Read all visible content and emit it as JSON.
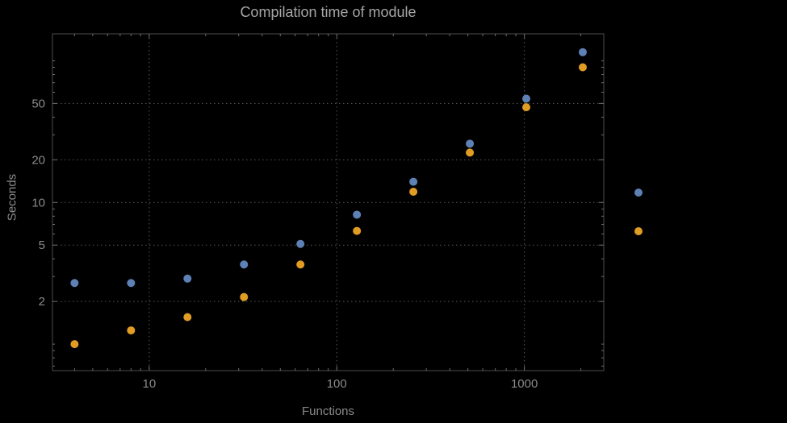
{
  "chart_data": {
    "type": "scatter",
    "title": "Compilation time of module",
    "xlabel": "Functions",
    "ylabel": "Seconds",
    "x_scale": "log",
    "y_scale": "log",
    "xlim": [
      3.05,
      2650
    ],
    "ylim": [
      0.65,
      155
    ],
    "grid": true,
    "x_ticks": [
      {
        "value": 10,
        "label": "10"
      },
      {
        "value": 100,
        "label": "100"
      },
      {
        "value": 1000,
        "label": "1000"
      }
    ],
    "y_ticks": [
      {
        "value": 2,
        "label": "2"
      },
      {
        "value": 5,
        "label": "5"
      },
      {
        "value": 10,
        "label": "10"
      },
      {
        "value": 20,
        "label": "20"
      },
      {
        "value": 50,
        "label": "50"
      }
    ],
    "x": [
      4,
      8,
      16,
      32,
      64,
      128,
      256,
      512,
      1024,
      2048
    ],
    "series": [
      {
        "name": "blue-series",
        "color": "#5E81B5",
        "values": [
          2.7,
          2.7,
          2.9,
          3.65,
          5.1,
          8.2,
          14,
          26,
          54,
          115
        ]
      },
      {
        "name": "orange-series",
        "color": "#E19C24",
        "values": [
          1.0,
          1.25,
          1.55,
          2.15,
          3.65,
          6.3,
          11.9,
          22.5,
          47,
          90
        ]
      }
    ],
    "legend": {
      "position": "outside-right",
      "labels_visible": false,
      "entries": [
        {
          "name": "blue-series",
          "color": "#5E81B5"
        },
        {
          "name": "orange-series",
          "color": "#E19C24"
        }
      ]
    }
  },
  "style": {
    "background": "#000000",
    "frame_color": "#4b4b4b",
    "grid_color": "#585858",
    "tick_color": "#6e6e6e",
    "tick_label_color": "#8a8a8a",
    "title_color": "#a6a6a6",
    "axis_label_color": "#8a8a8a",
    "point_radius": 5
  }
}
